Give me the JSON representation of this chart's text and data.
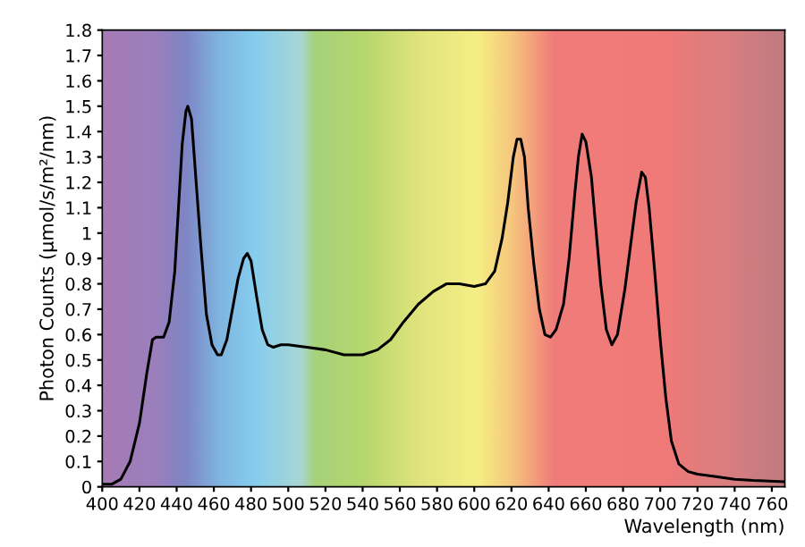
{
  "chart_data": {
    "type": "line",
    "xlabel": "Wavelength (nm)",
    "ylabel": "Photon Counts (µmol/s/m²/nm)",
    "x": [
      400,
      405,
      410,
      415,
      420,
      424,
      427,
      429,
      433,
      436,
      439,
      441,
      443,
      445,
      446,
      448,
      450,
      453,
      456,
      459,
      462,
      464,
      467,
      470,
      473,
      476,
      478,
      480,
      483,
      486,
      489,
      492,
      496,
      500,
      510,
      520,
      530,
      540,
      548,
      555,
      562,
      570,
      578,
      585,
      592,
      600,
      606,
      611,
      615,
      618,
      621,
      623,
      625,
      627,
      629,
      632,
      635,
      638,
      641,
      644,
      648,
      651,
      654,
      656,
      658,
      660,
      663,
      665,
      668,
      671,
      674,
      677,
      681,
      684,
      687,
      690,
      692,
      694,
      697,
      700,
      703,
      706,
      710,
      715,
      720,
      730,
      740,
      750,
      767
    ],
    "series": [
      {
        "color": "#000000",
        "values": [
          0.01,
          0.01,
          0.03,
          0.1,
          0.25,
          0.45,
          0.58,
          0.59,
          0.59,
          0.65,
          0.85,
          1.1,
          1.35,
          1.48,
          1.5,
          1.45,
          1.25,
          0.95,
          0.68,
          0.56,
          0.52,
          0.52,
          0.58,
          0.7,
          0.82,
          0.9,
          0.92,
          0.89,
          0.75,
          0.62,
          0.56,
          0.55,
          0.56,
          0.56,
          0.55,
          0.54,
          0.52,
          0.52,
          0.54,
          0.58,
          0.65,
          0.72,
          0.77,
          0.8,
          0.8,
          0.79,
          0.8,
          0.85,
          0.98,
          1.12,
          1.3,
          1.37,
          1.37,
          1.3,
          1.1,
          0.88,
          0.7,
          0.6,
          0.59,
          0.62,
          0.72,
          0.9,
          1.15,
          1.3,
          1.39,
          1.36,
          1.22,
          1.05,
          0.8,
          0.62,
          0.56,
          0.6,
          0.78,
          0.95,
          1.12,
          1.24,
          1.22,
          1.1,
          0.85,
          0.58,
          0.35,
          0.18,
          0.09,
          0.06,
          0.05,
          0.04,
          0.03,
          0.025,
          0.02
        ]
      }
    ],
    "xlim": [
      400,
      767
    ],
    "ylim": [
      0,
      1.8
    ],
    "xticks": [
      400,
      420,
      440,
      460,
      480,
      500,
      520,
      540,
      560,
      580,
      600,
      620,
      640,
      660,
      680,
      700,
      720,
      740,
      760
    ],
    "yticks": [
      0,
      0.1,
      0.2,
      0.3,
      0.4,
      0.5,
      0.6,
      0.7,
      0.8,
      0.9,
      1,
      1.1,
      1.2,
      1.3,
      1.4,
      1.5,
      1.6,
      1.7,
      1.8
    ],
    "grid": false,
    "legend": false,
    "marker": "none",
    "line_style": "solid"
  }
}
